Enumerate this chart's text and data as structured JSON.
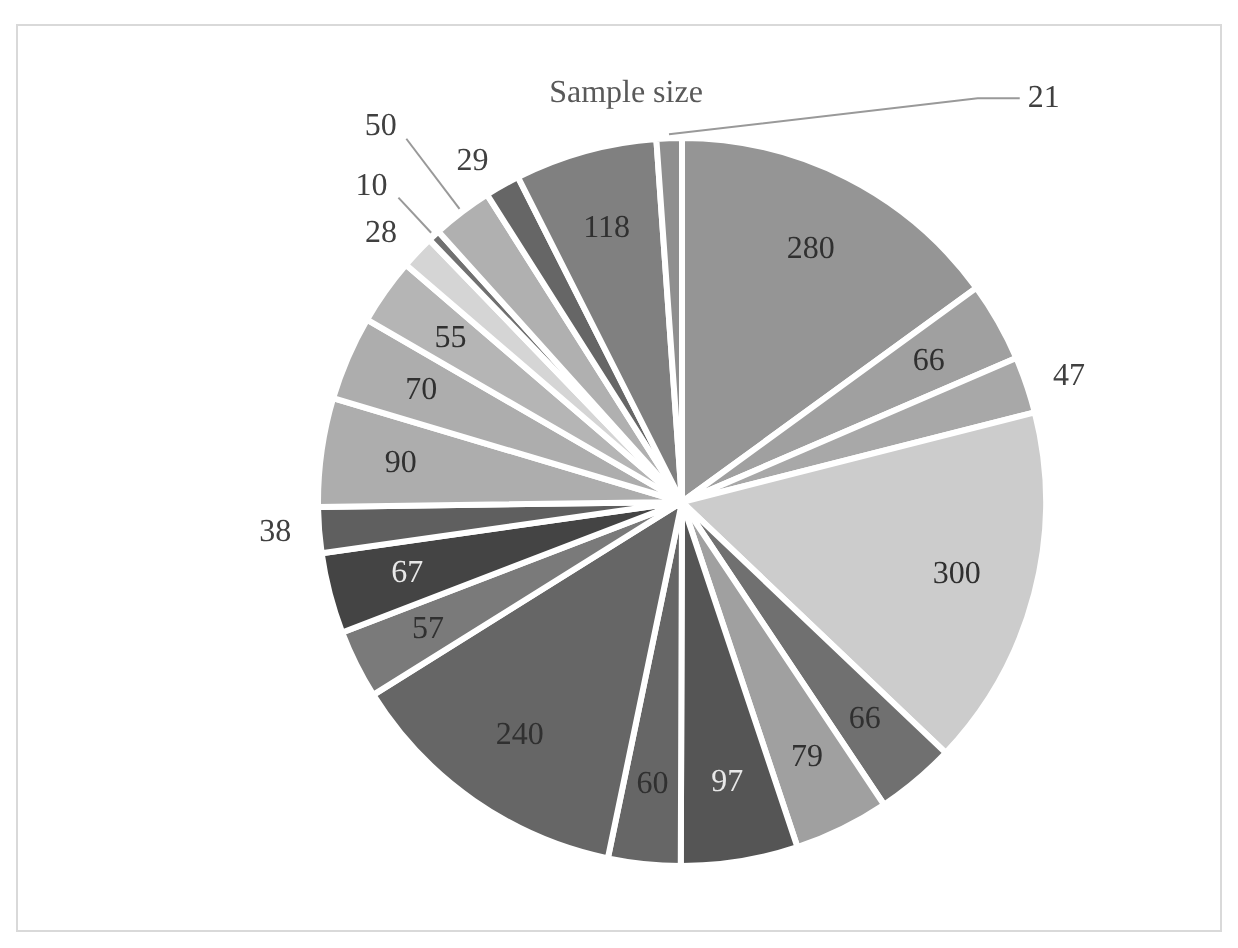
{
  "chart_data": {
    "type": "pie",
    "title": "Sample size",
    "categories": [
      null,
      null,
      null,
      null,
      null,
      null,
      null,
      null,
      null,
      null,
      null,
      null,
      null,
      null,
      null,
      null,
      null,
      null,
      null,
      null,
      null
    ],
    "values": [
      280,
      66,
      47,
      300,
      66,
      79,
      97,
      60,
      240,
      57,
      67,
      38,
      90,
      70,
      55,
      28,
      10,
      50,
      29,
      118,
      21
    ],
    "colors": [
      "#959595",
      "#a0a0a0",
      "#a8a8a8",
      "#cccccc",
      "#707070",
      "#a0a0a0",
      "#555555",
      "#666666",
      "#666666",
      "#7a7a7a",
      "#444444",
      "#5f5f5f",
      "#adadad",
      "#adadad",
      "#b5b5b5",
      "#d5d5d5",
      "#707070",
      "#b0b0b0",
      "#666666",
      "#808080",
      "#8f8f8f"
    ],
    "data_labels": true
  }
}
